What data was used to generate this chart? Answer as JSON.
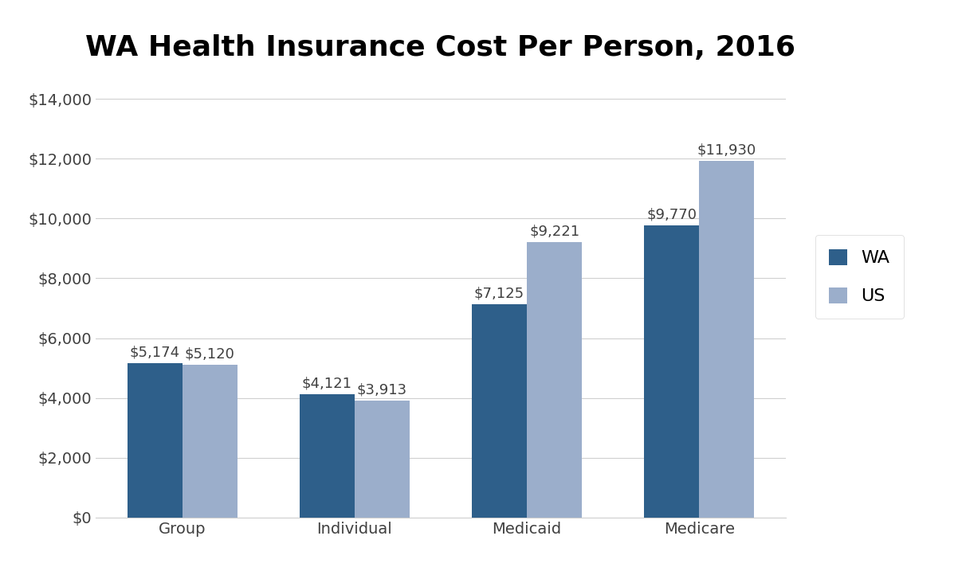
{
  "title": "WA Health Insurance Cost Per Person, 2016",
  "categories": [
    "Group",
    "Individual",
    "Medicaid",
    "Medicare"
  ],
  "wa_values": [
    5174,
    4121,
    7125,
    9770
  ],
  "us_values": [
    5120,
    3913,
    9221,
    11930
  ],
  "wa_labels": [
    "$5,174",
    "$4,121",
    "$7,125",
    "$9,770"
  ],
  "us_labels": [
    "$5,120",
    "$3,913",
    "$9,221",
    "$11,930"
  ],
  "wa_color": "#2E5F8A",
  "us_color": "#9BAECB",
  "legend_labels": [
    "WA",
    "US"
  ],
  "ylim": [
    0,
    15000
  ],
  "yticks": [
    0,
    2000,
    4000,
    6000,
    8000,
    10000,
    12000,
    14000
  ],
  "background_color": "#FFFFFF",
  "title_fontsize": 26,
  "tick_fontsize": 14,
  "label_fontsize": 13,
  "legend_fontsize": 16,
  "bar_width": 0.32,
  "grid_color": "#D0D0D0",
  "text_color": "#404040"
}
